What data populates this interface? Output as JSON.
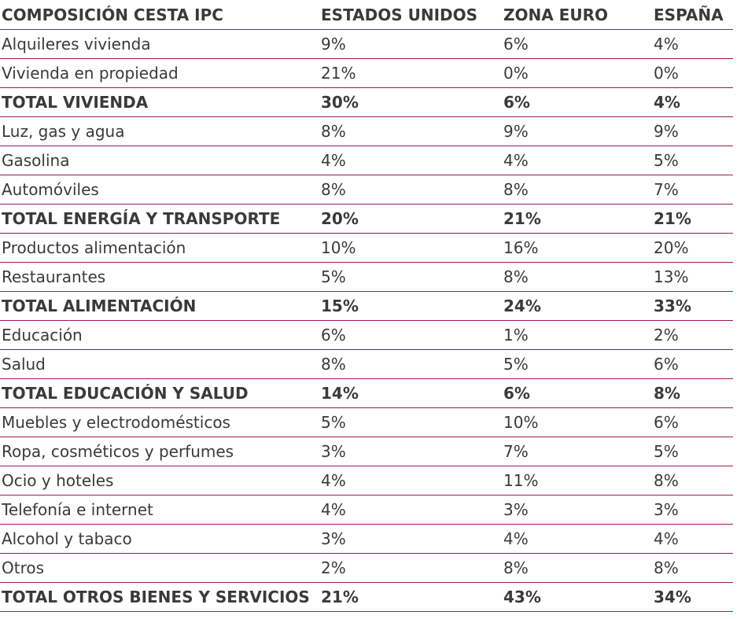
{
  "chart_data": {
    "type": "table",
    "columns": [
      "COMPOSICIÓN CESTA IPC",
      "ESTADOS UNIDOS",
      "ZONA EURO",
      "ESPAÑA"
    ],
    "rows": [
      {
        "label": "Alquileres vivienda",
        "values": [
          "9%",
          "6%",
          "4%"
        ],
        "total": false
      },
      {
        "label": "Vivienda en propiedad",
        "values": [
          "21%",
          "0%",
          "0%"
        ],
        "total": false
      },
      {
        "label": "TOTAL VIVIENDA",
        "values": [
          "30%",
          "6%",
          "4%"
        ],
        "total": true
      },
      {
        "label": "Luz, gas y agua",
        "values": [
          "8%",
          "9%",
          "9%"
        ],
        "total": false
      },
      {
        "label": "Gasolina",
        "values": [
          "4%",
          "4%",
          "5%"
        ],
        "total": false
      },
      {
        "label": "Automóviles",
        "values": [
          "8%",
          "8%",
          "7%"
        ],
        "total": false
      },
      {
        "label": "TOTAL ENERGÍA Y TRANSPORTE",
        "values": [
          "20%",
          "21%",
          "21%"
        ],
        "total": true
      },
      {
        "label": "Productos alimentación",
        "values": [
          "10%",
          "16%",
          "20%"
        ],
        "total": false
      },
      {
        "label": "Restaurantes",
        "values": [
          "5%",
          "8%",
          "13%"
        ],
        "total": false
      },
      {
        "label": "TOTAL ALIMENTACIÓN",
        "values": [
          "15%",
          "24%",
          "33%"
        ],
        "total": true
      },
      {
        "label": "Educación",
        "values": [
          "6%",
          "1%",
          "2%"
        ],
        "total": false
      },
      {
        "label": "Salud",
        "values": [
          "8%",
          "5%",
          "6%"
        ],
        "total": false
      },
      {
        "label": "TOTAL EDUCACIÓN Y SALUD",
        "values": [
          "14%",
          "6%",
          "8%"
        ],
        "total": true
      },
      {
        "label": "Muebles y electrodomésticos",
        "values": [
          "5%",
          "10%",
          "6%"
        ],
        "total": false
      },
      {
        "label": "Ropa, cosméticos y perfumes",
        "values": [
          "3%",
          "7%",
          "5%"
        ],
        "total": false
      },
      {
        "label": "Ocio y hoteles",
        "values": [
          "4%",
          "11%",
          "8%"
        ],
        "total": false
      },
      {
        "label": "Telefonía e internet",
        "values": [
          "4%",
          "3%",
          "3%"
        ],
        "total": false
      },
      {
        "label": "Alcohol y tabaco",
        "values": [
          "3%",
          "4%",
          "4%"
        ],
        "total": false
      },
      {
        "label": "Otros",
        "values": [
          "2%",
          "8%",
          "8%"
        ],
        "total": false
      },
      {
        "label": "TOTAL OTROS BIENES Y SERVICIOS",
        "values": [
          "21%",
          "43%",
          "34%"
        ],
        "total": true
      }
    ]
  },
  "colors": {
    "rule": "#9b1b5a",
    "text": "#3a3a3a"
  }
}
